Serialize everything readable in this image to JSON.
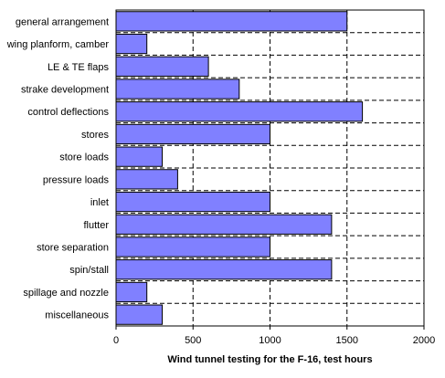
{
  "chart_data": {
    "type": "bar",
    "orientation": "horizontal",
    "categories": [
      "general arrangement",
      "wing planform, camber",
      "LE & TE flaps",
      "strake development",
      "control deflections",
      "stores",
      "store loads",
      "pressure loads",
      "inlet",
      "flutter",
      "store separation",
      "spin/stall",
      "spillage and nozzle",
      "miscellaneous"
    ],
    "values": [
      1500,
      200,
      600,
      800,
      1600,
      1000,
      300,
      400,
      1000,
      1400,
      1000,
      1400,
      200,
      300
    ],
    "title": "",
    "xlabel": "Wind tunnel testing for the F-16, test hours",
    "ylabel": "",
    "xlim": [
      0,
      2000
    ],
    "xticks": [
      0,
      500,
      1000,
      1500,
      2000
    ],
    "tick_labels": [
      "0",
      "500",
      "1000",
      "1500",
      "2000"
    ],
    "grid": "vertical dashed at each major tick, horizontal dashed between categories",
    "legend": "none",
    "colors": {
      "bar_fill": "#8080ff",
      "bar_stroke": "#000000",
      "grid": "#000000",
      "plot_background": "#ffffff"
    }
  }
}
